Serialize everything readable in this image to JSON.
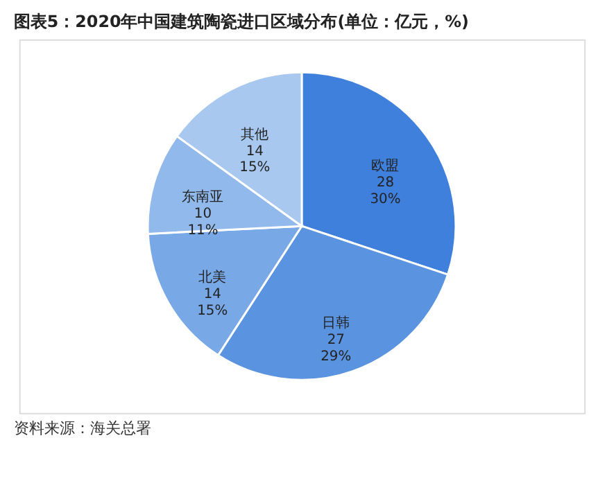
{
  "chart_data": {
    "type": "pie",
    "title": "图表5：2020年中国建筑陶瓷进口区域分布(单位：亿元，%)",
    "categories": [
      "欧盟",
      "日韩",
      "北美",
      "东南亚",
      "其他"
    ],
    "values": [
      28,
      27,
      14,
      10,
      14
    ],
    "value_labels": [
      "28\n30%",
      "27\n29%",
      "14\n15%",
      "10\n11%",
      "14\n15%"
    ],
    "colors": [
      "#3f80dc",
      "#5a94e0",
      "#78a8e6",
      "#92b9eb",
      "#a8c8ef"
    ],
    "legend": false,
    "annotations": [
      "资料来源：海关总署"
    ]
  }
}
